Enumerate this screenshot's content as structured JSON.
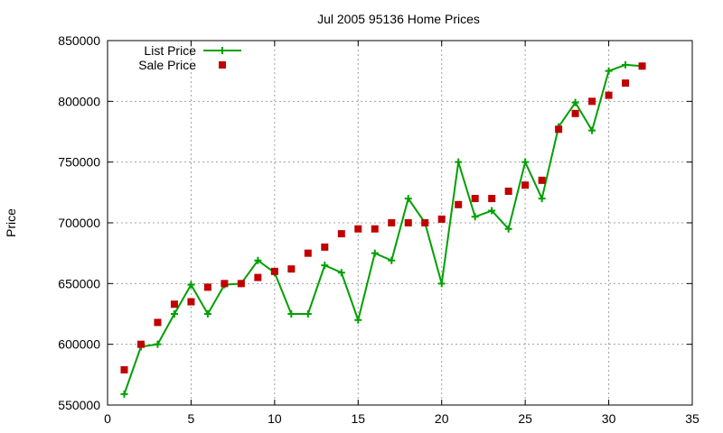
{
  "chart_data": {
    "type": "line",
    "title": "Jul 2005 95136 Home Prices",
    "xlabel": "",
    "ylabel": "Price",
    "xlim": [
      0,
      35
    ],
    "ylim": [
      550000,
      850000
    ],
    "xticks": [
      0,
      5,
      10,
      15,
      20,
      25,
      30,
      35
    ],
    "yticks": [
      550000,
      600000,
      650000,
      700000,
      750000,
      800000,
      850000
    ],
    "grid": true,
    "legend": "top-left",
    "series": [
      {
        "name": "List Price",
        "style": "linespoints",
        "color": "#00a000",
        "x": [
          1,
          2,
          3,
          4,
          5,
          6,
          7,
          8,
          9,
          10,
          11,
          12,
          13,
          14,
          15,
          16,
          17,
          18,
          19,
          20,
          21,
          22,
          23,
          24,
          25,
          26,
          27,
          28,
          29,
          30,
          31,
          32
        ],
        "y": [
          559000,
          598000,
          600000,
          625000,
          649000,
          625000,
          649000,
          650000,
          669000,
          659000,
          625000,
          625000,
          665000,
          659000,
          620000,
          675000,
          669000,
          720000,
          700000,
          650000,
          750000,
          705000,
          710000,
          695000,
          750000,
          720000,
          779000,
          799000,
          776000,
          825000,
          830000,
          829000
        ]
      },
      {
        "name": "Sale Price",
        "style": "points",
        "color": "#c00000",
        "x": [
          1,
          2,
          3,
          4,
          5,
          6,
          7,
          8,
          9,
          10,
          11,
          12,
          13,
          14,
          15,
          16,
          17,
          18,
          19,
          20,
          21,
          22,
          23,
          24,
          25,
          26,
          27,
          28,
          29,
          30,
          31,
          32
        ],
        "y": [
          579000,
          600000,
          618000,
          633000,
          635000,
          647000,
          650000,
          650000,
          655000,
          660000,
          662000,
          675000,
          680000,
          691000,
          695000,
          695000,
          700000,
          700000,
          700000,
          703000,
          715000,
          720000,
          720000,
          726000,
          731000,
          735000,
          777000,
          790000,
          800000,
          805000,
          815000,
          829000
        ]
      }
    ]
  }
}
